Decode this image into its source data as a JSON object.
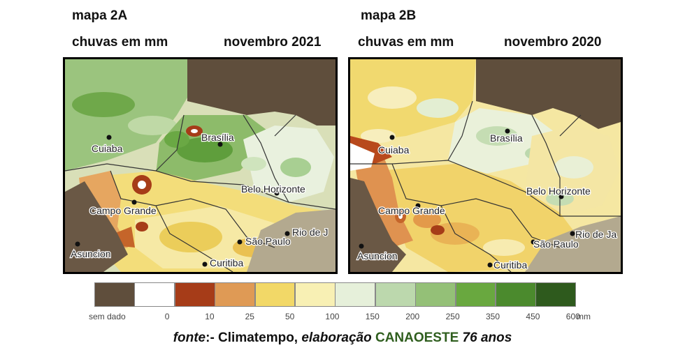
{
  "map_a": {
    "title": "mapa 2A",
    "subtitle": "chuvas em mm",
    "period": "novembro 2021",
    "cities": [
      "Cuiaba",
      "Brasília",
      "Belo Horizonte",
      "Campo Grande",
      "Asuncion",
      "São Paulo",
      "Rio de J",
      "Curitiba"
    ]
  },
  "map_b": {
    "title": "mapa 2B",
    "subtitle": "chuvas em mm",
    "period": "novembro 2020",
    "cities": [
      "Cuiaba",
      "Brasília",
      "Belo Horizonte",
      "Campo Grande",
      "Asuncion",
      "São Paulo",
      "Rio de Ja",
      "Curitiba"
    ]
  },
  "legend": {
    "unit": "mm",
    "items": [
      {
        "label": "sem dado",
        "color": "#5f4e3c"
      },
      {
        "label": "0",
        "color": "#ffffff"
      },
      {
        "label": "10",
        "color": "#a63c18"
      },
      {
        "label": "25",
        "color": "#df9a55"
      },
      {
        "label": "50",
        "color": "#f2d867"
      },
      {
        "label": "100",
        "color": "#f8f0b4"
      },
      {
        "label": "150",
        "color": "#e6f0da"
      },
      {
        "label": "200",
        "color": "#bcd8ad"
      },
      {
        "label": "250",
        "color": "#94c077"
      },
      {
        "label": "350",
        "color": "#69a83f"
      },
      {
        "label": "450",
        "color": "#4b8a2d"
      },
      {
        "label": "600",
        "color": "#2e5a1d"
      }
    ]
  },
  "source": {
    "prefix": "fonte",
    "middle": ":- Climatempo, ",
    "elab": "elaboração ",
    "org": "CANAOESTE",
    "suffix": " 76 anos"
  }
}
